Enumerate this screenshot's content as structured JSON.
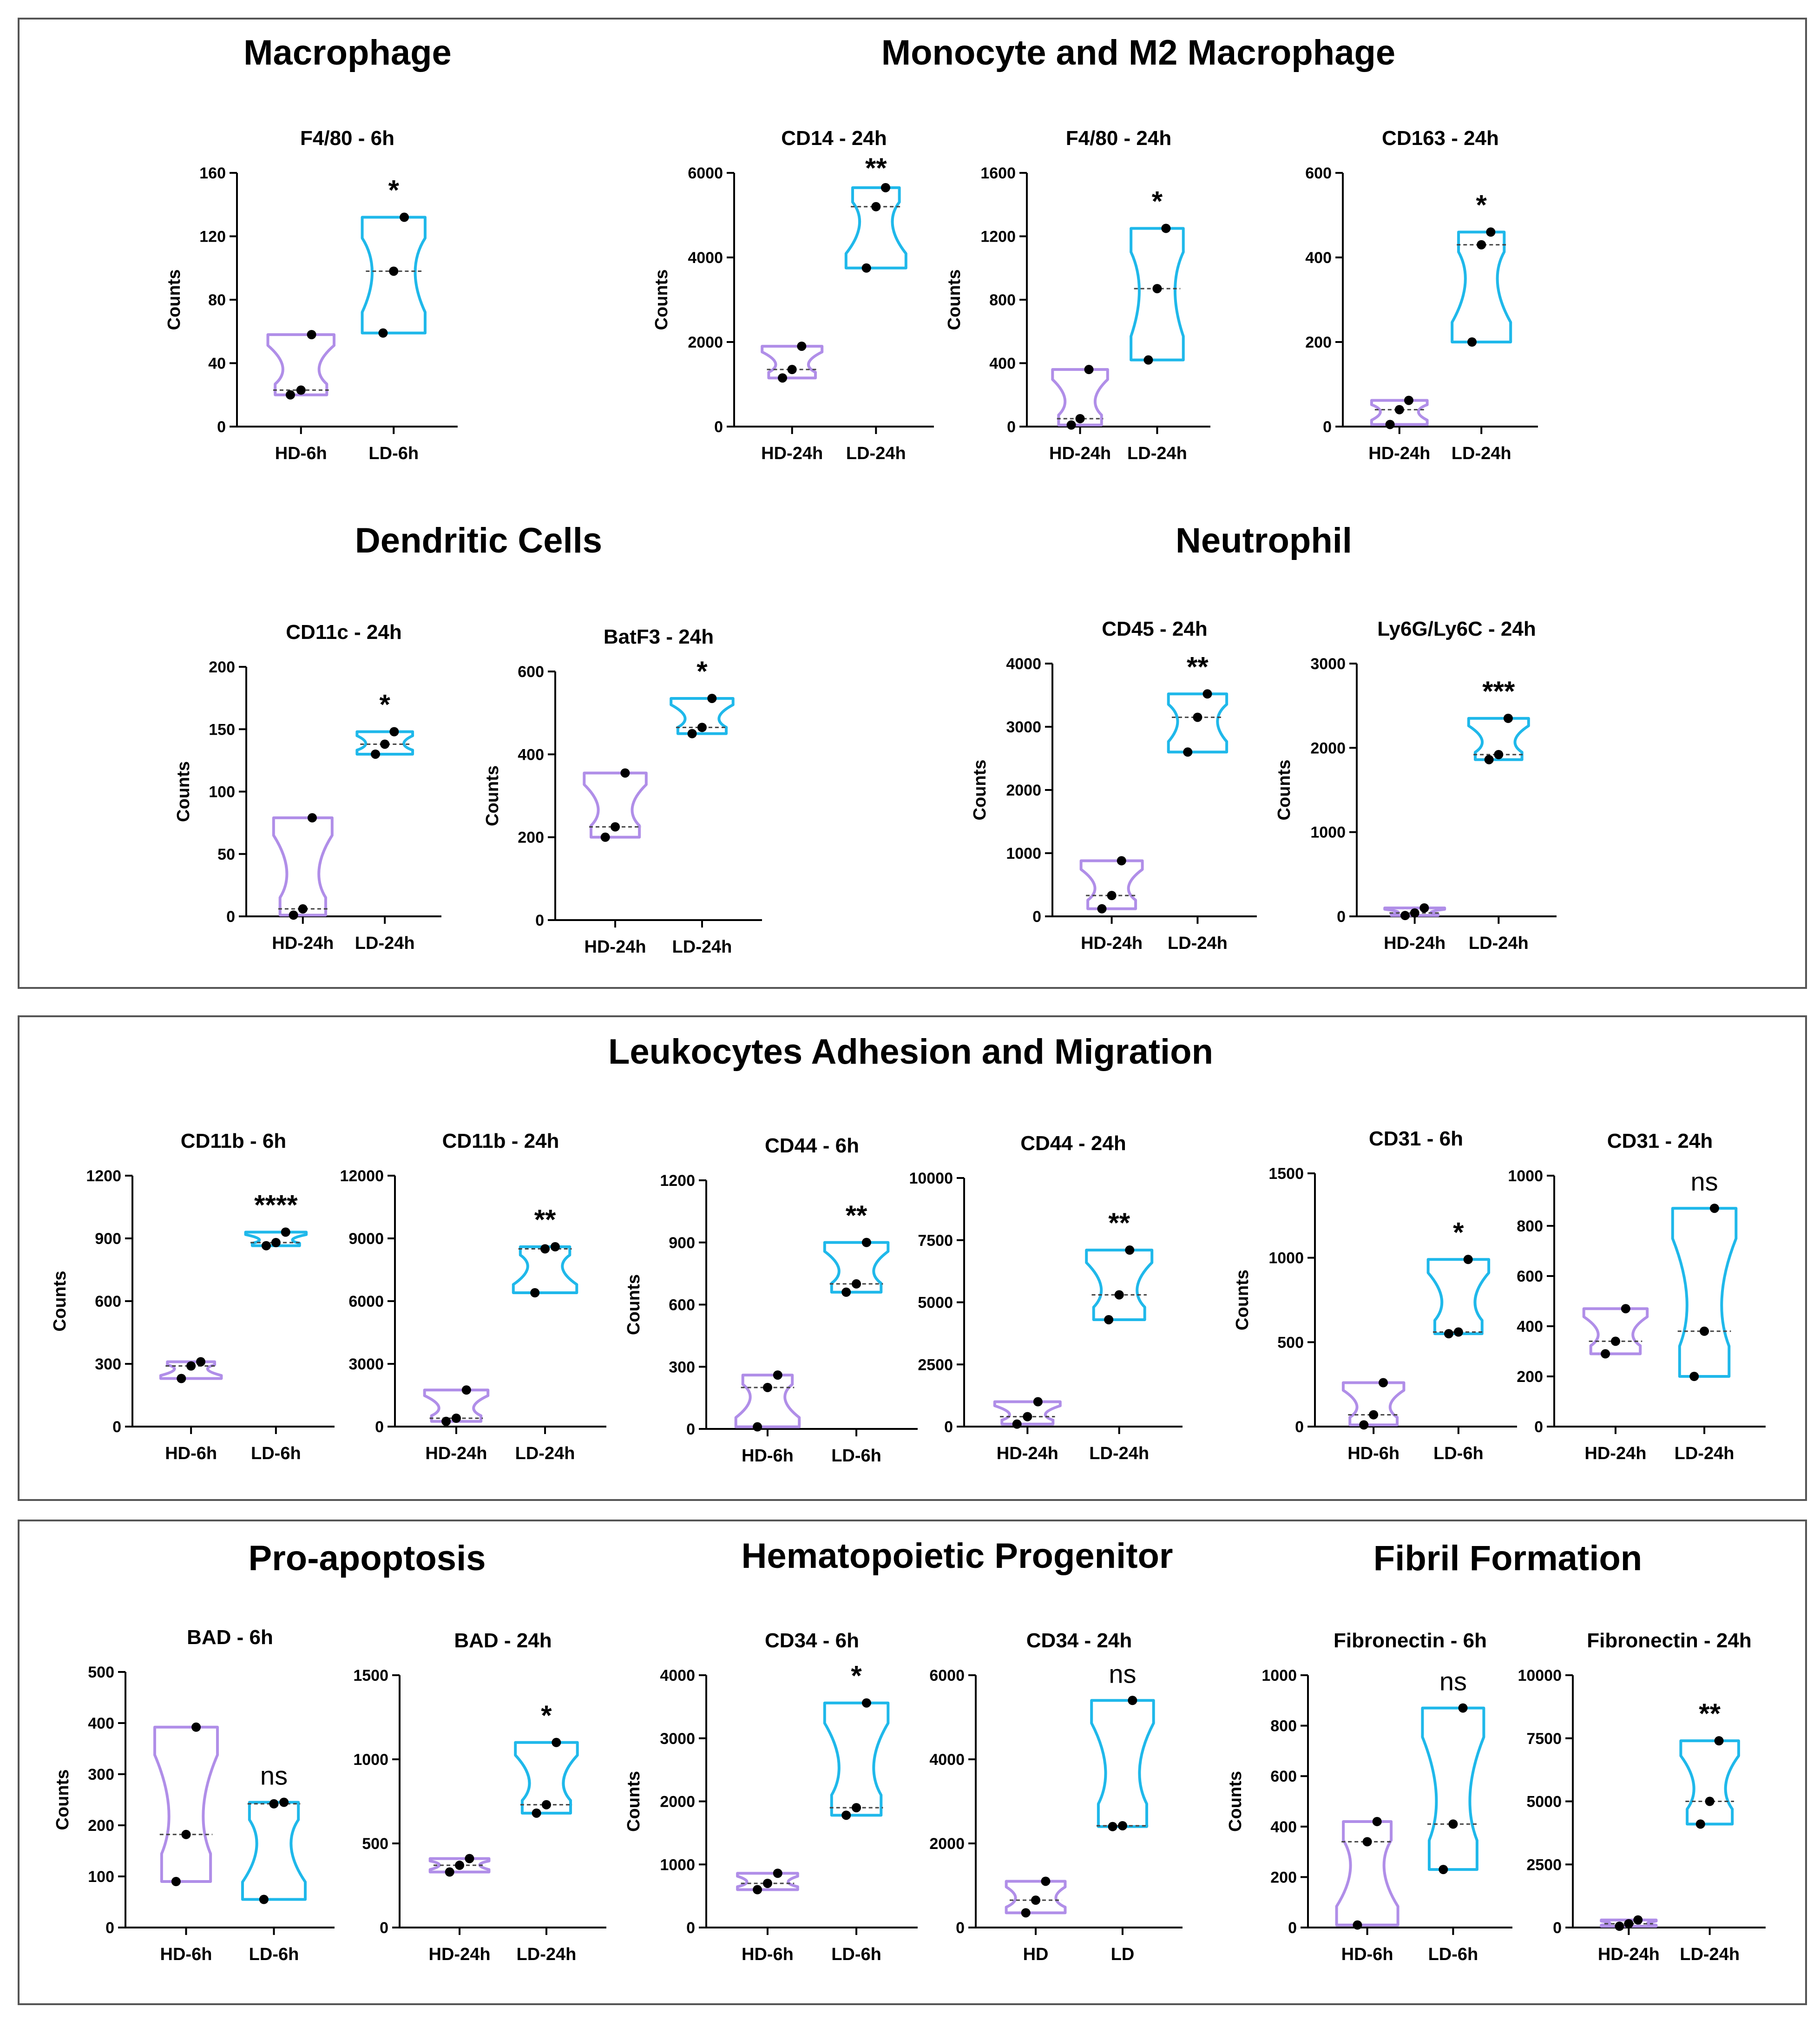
{
  "colors": {
    "hd": "#b08ee8",
    "ld": "#1fb8ea",
    "axis": "#000000",
    "border": "#555555"
  },
  "sections": [
    {
      "id": "macrophage",
      "title": "Macrophage"
    },
    {
      "id": "monocyte",
      "title": "Monocyte and M2 Macrophage"
    },
    {
      "id": "dendritic",
      "title": "Dendritic Cells"
    },
    {
      "id": "neutrophil",
      "title": "Neutrophil"
    },
    {
      "id": "leukocytes",
      "title": "Leukocytes Adhesion and Migration"
    },
    {
      "id": "apoptosis",
      "title": "Pro-apoptosis"
    },
    {
      "id": "hematopoietic",
      "title": "Hematopoietic Progenitor"
    },
    {
      "id": "fibril",
      "title": "Fibril Formation"
    }
  ],
  "chart_data": [
    {
      "type": "violin",
      "title": "F4/80 - 6h",
      "ylabel": "Counts",
      "ylim": [
        0,
        160
      ],
      "yticks": [
        0,
        40,
        80,
        120,
        160
      ],
      "categories": [
        "HD-6h",
        "LD-6h"
      ],
      "sig": "*",
      "series": [
        {
          "name": "HD-6h",
          "values": [
            20,
            23,
            58
          ],
          "median": 23
        },
        {
          "name": "LD-6h",
          "values": [
            59,
            98,
            132
          ],
          "median": 98
        }
      ]
    },
    {
      "type": "violin",
      "title": "CD14 - 24h",
      "ylabel": "Counts",
      "ylim": [
        0,
        6000
      ],
      "yticks": [
        0,
        2000,
        4000,
        6000
      ],
      "categories": [
        "HD-24h",
        "LD-24h"
      ],
      "sig": "**",
      "series": [
        {
          "name": "HD-24h",
          "values": [
            1150,
            1350,
            1900
          ],
          "median": 1350
        },
        {
          "name": "LD-24h",
          "values": [
            3750,
            5200,
            5650
          ],
          "median": 5200
        }
      ]
    },
    {
      "type": "violin",
      "title": "F4/80 - 24h",
      "ylabel": "Counts",
      "ylim": [
        0,
        1600
      ],
      "yticks": [
        0,
        400,
        800,
        1200,
        1600
      ],
      "categories": [
        "HD-24h",
        "LD-24h"
      ],
      "sig": "*",
      "series": [
        {
          "name": "HD-24h",
          "values": [
            10,
            50,
            360
          ],
          "median": 50
        },
        {
          "name": "LD-24h",
          "values": [
            420,
            870,
            1250
          ],
          "median": 870
        }
      ]
    },
    {
      "type": "violin",
      "title": "CD163 - 24h",
      "ylabel": "",
      "ylim": [
        0,
        600
      ],
      "yticks": [
        0,
        200,
        400,
        600
      ],
      "categories": [
        "HD-24h",
        "LD-24h"
      ],
      "sig": "*",
      "series": [
        {
          "name": "HD-24h",
          "values": [
            5,
            40,
            62
          ],
          "median": 40
        },
        {
          "name": "LD-24h",
          "values": [
            200,
            430,
            460
          ],
          "median": 430
        }
      ]
    },
    {
      "type": "violin",
      "title": "CD11c - 24h",
      "ylabel": "Counts",
      "ylim": [
        0,
        200
      ],
      "yticks": [
        0,
        50,
        100,
        150,
        200
      ],
      "categories": [
        "HD-24h",
        "LD-24h"
      ],
      "sig": "*",
      "series": [
        {
          "name": "HD-24h",
          "values": [
            1,
            6,
            79
          ],
          "median": 6
        },
        {
          "name": "LD-24h",
          "values": [
            130,
            138,
            148
          ],
          "median": 138
        }
      ]
    },
    {
      "type": "violin",
      "title": "BatF3 - 24h",
      "ylabel": "Counts",
      "ylim": [
        0,
        600
      ],
      "yticks": [
        0,
        200,
        400,
        600
      ],
      "categories": [
        "HD-24h",
        "LD-24h"
      ],
      "sig": "*",
      "series": [
        {
          "name": "HD-24h",
          "values": [
            200,
            225,
            355
          ],
          "median": 225
        },
        {
          "name": "LD-24h",
          "values": [
            450,
            465,
            535
          ],
          "median": 465
        }
      ]
    },
    {
      "type": "violin",
      "title": "CD45 - 24h",
      "ylabel": "Counts",
      "ylim": [
        0,
        4000
      ],
      "yticks": [
        0,
        1000,
        2000,
        3000,
        4000
      ],
      "categories": [
        "HD-24h",
        "LD-24h"
      ],
      "sig": "**",
      "series": [
        {
          "name": "HD-24h",
          "values": [
            120,
            330,
            880
          ],
          "median": 330
        },
        {
          "name": "LD-24h",
          "values": [
            2600,
            3150,
            3520
          ],
          "median": 3150
        }
      ]
    },
    {
      "type": "violin",
      "title": "Ly6G/Ly6C - 24h",
      "ylabel": "Counts",
      "ylim": [
        0,
        3000
      ],
      "yticks": [
        0,
        1000,
        2000,
        3000
      ],
      "categories": [
        "HD-24h",
        "LD-24h"
      ],
      "sig": "***",
      "series": [
        {
          "name": "HD-24h",
          "values": [
            10,
            40,
            100
          ],
          "median": 40
        },
        {
          "name": "LD-24h",
          "values": [
            1860,
            1920,
            2350
          ],
          "median": 1920
        }
      ]
    },
    {
      "type": "violin",
      "title": "CD11b - 6h",
      "ylabel": "Counts",
      "ylim": [
        0,
        1200
      ],
      "yticks": [
        0,
        300,
        600,
        900,
        1200
      ],
      "categories": [
        "HD-6h",
        "LD-6h"
      ],
      "sig": "****",
      "series": [
        {
          "name": "HD-6h",
          "values": [
            230,
            290,
            310
          ],
          "median": 290
        },
        {
          "name": "LD-6h",
          "values": [
            865,
            880,
            930
          ],
          "median": 880
        }
      ]
    },
    {
      "type": "violin",
      "title": "CD11b - 24h",
      "ylabel": "",
      "ylim": [
        0,
        12000
      ],
      "yticks": [
        0,
        3000,
        6000,
        9000,
        12000
      ],
      "categories": [
        "HD-24h",
        "LD-24h"
      ],
      "sig": "**",
      "series": [
        {
          "name": "HD-24h",
          "values": [
            250,
            400,
            1750
          ],
          "median": 400
        },
        {
          "name": "LD-24h",
          "values": [
            6400,
            8500,
            8600
          ],
          "median": 8500
        }
      ]
    },
    {
      "type": "violin",
      "title": "CD44 - 6h",
      "ylabel": "Counts",
      "ylim": [
        0,
        1200
      ],
      "yticks": [
        0,
        300,
        600,
        900,
        1200
      ],
      "categories": [
        "HD-6h",
        "LD-6h"
      ],
      "sig": "**",
      "series": [
        {
          "name": "HD-6h",
          "values": [
            10,
            200,
            260
          ],
          "median": 200
        },
        {
          "name": "LD-6h",
          "values": [
            660,
            700,
            900
          ],
          "median": 700
        }
      ]
    },
    {
      "type": "violin",
      "title": "CD44 - 24h",
      "ylabel": "",
      "ylim": [
        0,
        10000
      ],
      "yticks": [
        0,
        2500,
        5000,
        7500,
        10000
      ],
      "categories": [
        "HD-24h",
        "LD-24h"
      ],
      "sig": "**",
      "series": [
        {
          "name": "HD-24h",
          "values": [
            100,
            400,
            1000
          ],
          "median": 400
        },
        {
          "name": "LD-24h",
          "values": [
            4300,
            5300,
            7100
          ],
          "median": 5300
        }
      ]
    },
    {
      "type": "violin",
      "title": "CD31 - 6h",
      "ylabel": "Counts",
      "ylim": [
        0,
        1500
      ],
      "yticks": [
        0,
        500,
        1000,
        1500
      ],
      "categories": [
        "HD-6h",
        "LD-6h"
      ],
      "sig": "*",
      "series": [
        {
          "name": "HD-6h",
          "values": [
            10,
            70,
            260
          ],
          "median": 70
        },
        {
          "name": "LD-6h",
          "values": [
            550,
            560,
            990
          ],
          "median": 560
        }
      ]
    },
    {
      "type": "violin",
      "title": "CD31 - 24h",
      "ylabel": "",
      "ylim": [
        0,
        1000
      ],
      "yticks": [
        0,
        200,
        400,
        600,
        800,
        1000
      ],
      "categories": [
        "HD-24h",
        "LD-24h"
      ],
      "sig": "ns",
      "series": [
        {
          "name": "HD-24h",
          "values": [
            290,
            340,
            470
          ],
          "median": 340
        },
        {
          "name": "LD-24h",
          "values": [
            200,
            380,
            870
          ],
          "median": 380
        }
      ]
    },
    {
      "type": "violin",
      "title": "BAD - 6h",
      "ylabel": "Counts",
      "ylim": [
        0,
        500
      ],
      "yticks": [
        0,
        100,
        200,
        300,
        400,
        500
      ],
      "categories": [
        "HD-6h",
        "LD-6h"
      ],
      "sig": "ns",
      "series": [
        {
          "name": "HD-6h",
          "values": [
            90,
            182,
            392
          ],
          "median": 182
        },
        {
          "name": "LD-6h",
          "values": [
            55,
            242,
            245
          ],
          "median": 242
        }
      ]
    },
    {
      "type": "violin",
      "title": "BAD - 24h",
      "ylabel": "",
      "ylim": [
        0,
        1500
      ],
      "yticks": [
        0,
        500,
        1000,
        1500
      ],
      "categories": [
        "HD-24h",
        "LD-24h"
      ],
      "sig": "*",
      "series": [
        {
          "name": "HD-24h",
          "values": [
            330,
            370,
            410
          ],
          "median": 370
        },
        {
          "name": "LD-24h",
          "values": [
            680,
            730,
            1100
          ],
          "median": 730
        }
      ]
    },
    {
      "type": "violin",
      "title": "CD34 - 6h",
      "ylabel": "Counts",
      "ylim": [
        0,
        4000
      ],
      "yticks": [
        0,
        1000,
        2000,
        3000,
        4000
      ],
      "categories": [
        "HD-6h",
        "LD-6h"
      ],
      "sig": "*",
      "series": [
        {
          "name": "HD-6h",
          "values": [
            600,
            700,
            860
          ],
          "median": 700
        },
        {
          "name": "LD-6h",
          "values": [
            1780,
            1900,
            3560
          ],
          "median": 1900
        }
      ]
    },
    {
      "type": "violin",
      "title": "CD34 - 24h",
      "ylabel": "",
      "ylim": [
        0,
        6000
      ],
      "yticks": [
        0,
        2000,
        4000,
        6000
      ],
      "categories": [
        "HD",
        "LD"
      ],
      "sig": "ns",
      "series": [
        {
          "name": "HD",
          "values": [
            350,
            650,
            1100
          ],
          "median": 650
        },
        {
          "name": "LD",
          "values": [
            2400,
            2420,
            5400
          ],
          "median": 2420
        }
      ]
    },
    {
      "type": "violin",
      "title": "Fibronectin - 6h",
      "ylabel": "Counts",
      "ylim": [
        0,
        1000
      ],
      "yticks": [
        0,
        200,
        400,
        600,
        800,
        1000
      ],
      "categories": [
        "HD-6h",
        "LD-6h"
      ],
      "sig": "ns",
      "series": [
        {
          "name": "HD-6h",
          "values": [
            10,
            340,
            420
          ],
          "median": 340
        },
        {
          "name": "LD-6h",
          "values": [
            230,
            410,
            870
          ],
          "median": 410
        }
      ]
    },
    {
      "type": "violin",
      "title": "Fibronectin - 24h",
      "ylabel": "",
      "ylim": [
        0,
        10000
      ],
      "yticks": [
        0,
        2500,
        5000,
        7500,
        10000
      ],
      "categories": [
        "HD-24h",
        "LD-24h"
      ],
      "sig": "**",
      "series": [
        {
          "name": "HD-24h",
          "values": [
            50,
            150,
            300
          ],
          "median": 150
        },
        {
          "name": "LD-24h",
          "values": [
            4100,
            5000,
            7400
          ],
          "median": 5000
        }
      ]
    }
  ]
}
